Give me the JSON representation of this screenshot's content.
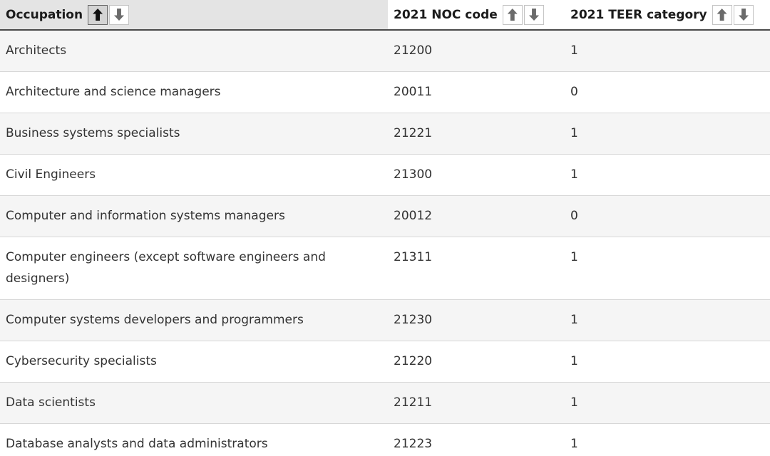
{
  "table": {
    "columns": [
      {
        "label": "Occupation",
        "sort_state": "ascending-active"
      },
      {
        "label": "2021 NOC code",
        "sort_state": "none"
      },
      {
        "label": "2021 TEER category",
        "sort_state": "none"
      }
    ],
    "sort_icons": {
      "ascending": "sort-ascending-icon",
      "descending": "sort-descending-icon"
    },
    "rows": [
      {
        "occupation": "Architects",
        "noc_code": "21200",
        "teer": "1"
      },
      {
        "occupation": "Architecture and science managers",
        "noc_code": "20011",
        "teer": "0"
      },
      {
        "occupation": "Business systems specialists",
        "noc_code": "21221",
        "teer": "1"
      },
      {
        "occupation": "Civil Engineers",
        "noc_code": "21300",
        "teer": "1"
      },
      {
        "occupation": "Computer and information systems managers",
        "noc_code": "20012",
        "teer": "0"
      },
      {
        "occupation": "Computer engineers (except software engineers and designers)",
        "noc_code": "21311",
        "teer": "1"
      },
      {
        "occupation": "Computer systems developers and programmers",
        "noc_code": "21230",
        "teer": "1"
      },
      {
        "occupation": "Cybersecurity specialists",
        "noc_code": "21220",
        "teer": "1"
      },
      {
        "occupation": "Data scientists",
        "noc_code": "21211",
        "teer": "1"
      },
      {
        "occupation": "Database analysts and data administrators",
        "noc_code": "21223",
        "teer": "1"
      }
    ]
  },
  "colors": {
    "sorted_header_bg": "#e4e4e4",
    "header_border": "#4a4a4a",
    "row_alt_bg": "#f5f5f5",
    "row_border": "#d7d7d7",
    "body_text": "#333333",
    "header_text": "#1b1b1b",
    "active_sort_btn_bg": "#d4d4d4",
    "active_sort_btn_border": "#686868",
    "active_arrow": "#111111",
    "inactive_arrow": "#6b6b6b",
    "inactive_sort_btn_border": "#c4c4c4"
  }
}
